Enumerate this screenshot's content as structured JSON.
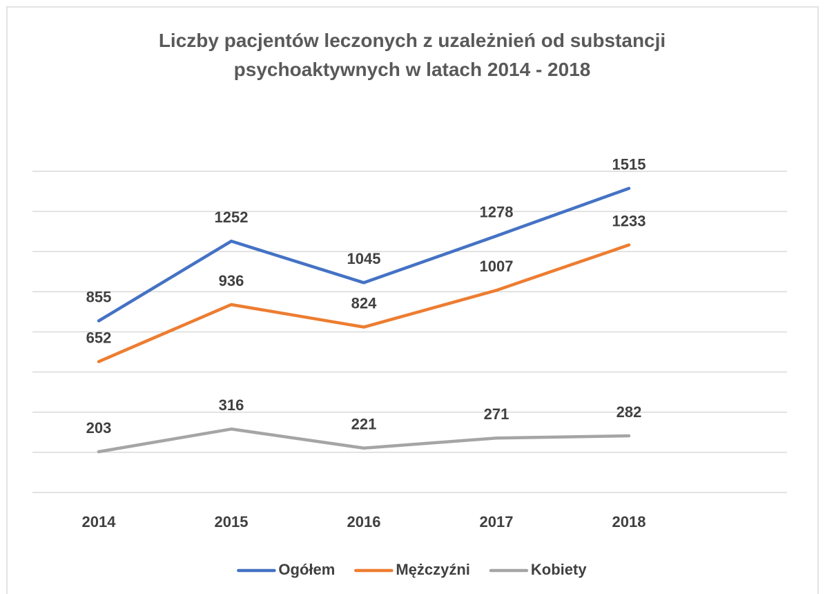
{
  "chart_data": {
    "type": "line",
    "title": "Liczby pacjentów leczonych z uzależnień od substancji psychoaktywnych w latach 2014 - 2018",
    "categories": [
      "2014",
      "2015",
      "2016",
      "2017",
      "2018"
    ],
    "series": [
      {
        "name": "Ogółem",
        "color": "#4472c4",
        "values": [
          855,
          1252,
          1045,
          1278,
          1515
        ]
      },
      {
        "name": "Mężczyźni",
        "color": "#ed7d31",
        "values": [
          652,
          936,
          824,
          1007,
          1233
        ]
      },
      {
        "name": "Kobiety",
        "color": "#a5a5a5",
        "values": [
          203,
          316,
          221,
          271,
          282
        ]
      }
    ],
    "ylim": [
      0,
      1600
    ],
    "yticks": [
      0,
      200,
      400,
      600,
      800,
      1000,
      1200,
      1400,
      1600
    ],
    "grid": true,
    "legend": "bottom"
  }
}
